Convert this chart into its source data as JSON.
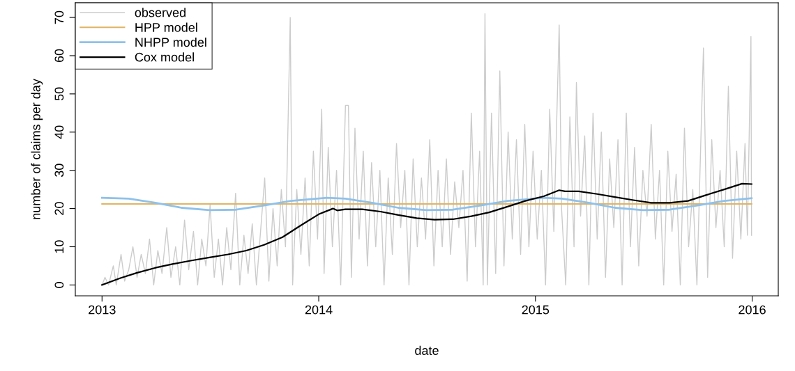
{
  "chart_data": {
    "type": "line",
    "xlabel": "date",
    "ylabel": "number of claims per day",
    "xlim": [
      "2012-11-17",
      "2016-02-14"
    ],
    "ylim": [
      -2.84,
      73.84
    ],
    "xticks": [
      {
        "value": "2013-01-01",
        "label": "2013"
      },
      {
        "value": "2014-01-01",
        "label": "2014"
      },
      {
        "value": "2015-01-01",
        "label": "2015"
      },
      {
        "value": "2016-01-01",
        "label": "2016"
      }
    ],
    "yticks": [
      0,
      10,
      20,
      30,
      40,
      50,
      60,
      70
    ],
    "grid": false,
    "legend": "top left",
    "marker": "none",
    "line_style": "solid",
    "series": [
      {
        "name": "observed",
        "color": "#cccccc",
        "x": [
          "2013-01-01",
          "2013-01-06",
          "2013-01-12",
          "2013-01-20",
          "2013-01-25",
          "2013-02-02",
          "2013-02-08",
          "2013-02-15",
          "2013-02-22",
          "2013-03-01",
          "2013-03-08",
          "2013-03-15",
          "2013-03-22",
          "2013-03-29",
          "2013-04-05",
          "2013-04-12",
          "2013-04-20",
          "2013-04-27",
          "2013-05-05",
          "2013-05-12",
          "2013-05-20",
          "2013-05-27",
          "2013-06-04",
          "2013-06-11",
          "2013-06-18",
          "2013-06-25",
          "2013-07-02",
          "2013-07-09",
          "2013-07-16",
          "2013-07-23",
          "2013-07-30",
          "2013-08-06",
          "2013-08-14",
          "2013-08-21",
          "2013-08-28",
          "2013-09-04",
          "2013-09-11",
          "2013-09-18",
          "2013-09-25",
          "2013-10-02",
          "2013-10-09",
          "2013-10-16",
          "2013-10-23",
          "2013-10-30",
          "2013-11-06",
          "2013-11-14",
          "2013-11-18",
          "2013-11-25",
          "2013-12-02",
          "2013-12-09",
          "2013-12-16",
          "2013-12-23",
          "2013-12-30",
          "2014-01-06",
          "2014-01-10",
          "2014-01-17",
          "2014-01-24",
          "2014-01-31",
          "2014-02-07",
          "2014-02-15",
          "2014-02-20",
          "2014-02-25",
          "2014-03-03",
          "2014-03-10",
          "2014-03-17",
          "2014-03-24",
          "2014-03-31",
          "2014-04-07",
          "2014-04-14",
          "2014-04-21",
          "2014-04-28",
          "2014-05-05",
          "2014-05-12",
          "2014-05-19",
          "2014-05-26",
          "2014-06-02",
          "2014-06-09",
          "2014-06-16",
          "2014-06-23",
          "2014-06-30",
          "2014-07-07",
          "2014-07-14",
          "2014-07-21",
          "2014-07-28",
          "2014-08-04",
          "2014-08-11",
          "2014-08-18",
          "2014-08-25",
          "2014-09-01",
          "2014-09-08",
          "2014-09-15",
          "2014-09-22",
          "2014-09-29",
          "2014-10-05",
          "2014-10-08",
          "2014-10-12",
          "2014-10-19",
          "2014-10-26",
          "2014-11-02",
          "2014-11-09",
          "2014-11-16",
          "2014-11-23",
          "2014-11-30",
          "2014-12-07",
          "2014-12-14",
          "2014-12-21",
          "2014-12-28",
          "2015-01-04",
          "2015-01-11",
          "2015-01-18",
          "2015-01-25",
          "2015-02-01",
          "2015-02-10",
          "2015-02-14",
          "2015-02-21",
          "2015-02-28",
          "2015-03-07",
          "2015-03-11",
          "2015-03-18",
          "2015-03-25",
          "2015-04-01",
          "2015-04-08",
          "2015-04-15",
          "2015-04-22",
          "2015-04-29",
          "2015-05-06",
          "2015-05-13",
          "2015-05-20",
          "2015-05-27",
          "2015-06-03",
          "2015-06-10",
          "2015-06-17",
          "2015-06-24",
          "2015-07-01",
          "2015-07-08",
          "2015-07-15",
          "2015-07-22",
          "2015-07-29",
          "2015-08-05",
          "2015-08-12",
          "2015-08-19",
          "2015-08-26",
          "2015-09-02",
          "2015-09-09",
          "2015-09-16",
          "2015-09-23",
          "2015-09-30",
          "2015-10-07",
          "2015-10-11",
          "2015-10-18",
          "2015-10-25",
          "2015-11-01",
          "2015-11-08",
          "2015-11-15",
          "2015-11-22",
          "2015-11-29",
          "2015-12-06",
          "2015-12-13",
          "2015-12-20",
          "2015-12-24",
          "2015-12-30",
          "2015-12-31"
        ],
        "values": [
          0,
          2,
          0,
          5,
          0,
          8,
          1,
          4,
          10,
          2,
          8,
          3,
          12,
          0,
          9,
          3,
          15,
          2,
          10,
          0,
          17,
          4,
          14,
          0,
          12,
          5,
          21,
          2,
          12,
          0,
          15,
          4,
          24,
          0,
          13,
          3,
          16,
          0,
          14,
          28,
          1,
          20,
          5,
          25,
          10,
          70,
          0,
          25,
          8,
          28,
          5,
          35,
          12,
          46,
          3,
          36,
          10,
          30,
          0,
          47,
          47,
          2,
          41,
          12,
          35,
          5,
          32,
          10,
          30,
          0,
          28,
          8,
          37,
          15,
          30,
          0,
          33,
          10,
          28,
          12,
          38,
          5,
          30,
          10,
          33,
          8,
          27,
          15,
          30,
          1,
          45,
          10,
          35,
          0,
          71,
          0,
          45,
          3,
          56,
          5,
          40,
          12,
          38,
          8,
          42,
          10,
          35,
          12,
          30,
          0,
          46,
          14,
          68,
          20,
          0,
          44,
          10,
          53,
          18,
          39,
          0,
          45,
          12,
          40,
          2,
          33,
          15,
          38,
          0,
          45,
          10,
          36,
          5,
          30,
          18,
          42,
          12,
          30,
          0,
          35,
          14,
          29,
          0,
          41,
          10,
          25,
          0,
          40,
          62,
          2,
          38,
          15,
          30,
          10,
          52,
          7,
          35,
          12,
          37,
          13,
          65,
          13
        ]
      },
      {
        "name": "HPP model",
        "color": "#e0b463",
        "x": [
          "2013-01-01",
          "2015-12-31"
        ],
        "values": [
          21.2,
          21.2
        ]
      },
      {
        "name": "NHPP model",
        "color": "#8ec1ea",
        "x": [
          "2013-01-01",
          "2013-02-15",
          "2013-04-01",
          "2013-05-15",
          "2013-07-01",
          "2013-08-15",
          "2013-10-01",
          "2013-11-15",
          "2014-01-15",
          "2014-02-15",
          "2014-04-01",
          "2014-05-15",
          "2014-07-01",
          "2014-08-15",
          "2014-10-01",
          "2014-11-15",
          "2015-01-15",
          "2015-02-15",
          "2015-04-01",
          "2015-05-15",
          "2015-07-01",
          "2015-08-15",
          "2015-10-01",
          "2015-11-15",
          "2015-12-31"
        ],
        "values": [
          22.8,
          22.6,
          21.5,
          20.2,
          19.6,
          19.7,
          20.8,
          22.0,
          22.8,
          22.6,
          21.5,
          20.2,
          19.6,
          19.7,
          20.8,
          22.0,
          22.8,
          22.6,
          21.5,
          20.2,
          19.6,
          19.7,
          20.8,
          22.0,
          22.7
        ]
      },
      {
        "name": "Cox model",
        "color": "#000000",
        "x": [
          "2013-01-01",
          "2013-02-01",
          "2013-03-01",
          "2013-04-01",
          "2013-05-01",
          "2013-06-01",
          "2013-07-01",
          "2013-08-01",
          "2013-09-01",
          "2013-10-01",
          "2013-11-01",
          "2013-12-01",
          "2014-01-01",
          "2014-01-25",
          "2014-02-01",
          "2014-02-15",
          "2014-03-15",
          "2014-04-15",
          "2014-05-15",
          "2014-06-15",
          "2014-07-15",
          "2014-08-15",
          "2014-09-15",
          "2014-10-15",
          "2014-11-15",
          "2014-12-15",
          "2015-01-15",
          "2015-02-10",
          "2015-02-20",
          "2015-03-15",
          "2015-04-15",
          "2015-05-15",
          "2015-06-15",
          "2015-07-15",
          "2015-08-15",
          "2015-09-15",
          "2015-10-15",
          "2015-11-15",
          "2015-12-15",
          "2015-12-31"
        ],
        "values": [
          0,
          1.8,
          3.2,
          4.5,
          5.5,
          6.4,
          7.2,
          8.0,
          9.0,
          10.5,
          12.5,
          15.5,
          18.5,
          20.0,
          19.5,
          19.8,
          19.8,
          19.2,
          18.3,
          17.5,
          17.1,
          17.2,
          18.0,
          19.0,
          20.5,
          22.0,
          23.2,
          24.8,
          24.5,
          24.5,
          23.8,
          23.0,
          22.2,
          21.5,
          21.5,
          22.0,
          23.5,
          25.0,
          26.5,
          26.4
        ]
      }
    ]
  }
}
